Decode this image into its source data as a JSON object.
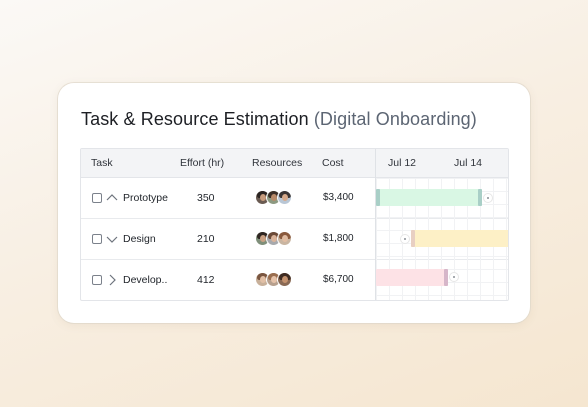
{
  "card": {
    "title": "Task & Resource Estimation",
    "subtitle": "(Digital Onboarding)"
  },
  "table": {
    "headers": {
      "task": "Task",
      "effort": "Effort (hr)",
      "resources": "Resources",
      "cost": "Cost"
    },
    "timeline_labels": [
      "Jul 12",
      "Jul 14"
    ],
    "rows": [
      {
        "name": "Prototype",
        "chevron": "chevron-up-icon",
        "effort": "350",
        "cost": "$3,400",
        "avatars": [
          "avatar-person",
          "avatar-person",
          "avatar-person"
        ],
        "bar_color": "#d9f7e4",
        "bar_handle_color": "#a9cfc7"
      },
      {
        "name": "Design",
        "chevron": "chevron-down-icon",
        "effort": "210",
        "cost": "$1,800",
        "avatars": [
          "avatar-person",
          "avatar-person",
          "avatar-person"
        ],
        "bar_color": "#fdf0c6",
        "bar_handle_color": "#e8cfc2"
      },
      {
        "name": "Develop..",
        "chevron": "chevron-right-icon",
        "effort": "412",
        "cost": "$6,700",
        "avatars": [
          "avatar-person",
          "avatar-person",
          "avatar-person"
        ],
        "bar_color": "#fde2e6",
        "bar_handle_color": "#d6b6c9"
      }
    ]
  }
}
